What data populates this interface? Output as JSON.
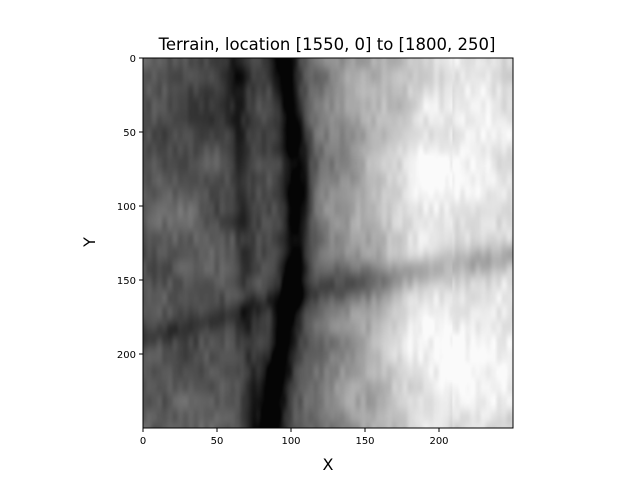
{
  "chart_data": {
    "type": "heatmap",
    "title": "Terrain, location [1550, 0] to [1800, 250]",
    "xlabel": "X",
    "ylabel": "Y",
    "xlim": [
      0,
      250
    ],
    "ylim": [
      250,
      0
    ],
    "colormap": "gray",
    "grid": false,
    "legend": "none",
    "xticks": [
      0,
      50,
      100,
      150,
      200
    ],
    "yticks": [
      0,
      50,
      100,
      150,
      200
    ],
    "xtick_labels": [
      "0",
      "50",
      "100",
      "150",
      "200"
    ],
    "ytick_labels": [
      "0",
      "50",
      "100",
      "150",
      "200"
    ],
    "features": {
      "dark_valley_vertical_x": 100,
      "dark_valley_horizontal_y": 150,
      "bright_region": "right side, x 150-250",
      "mid_gray_region": "left side, x 0-90"
    }
  }
}
